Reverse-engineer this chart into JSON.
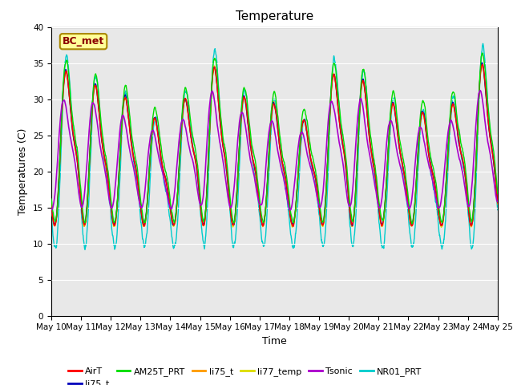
{
  "title": "Temperature",
  "xlabel": "Time",
  "ylabel": "Temperatures (C)",
  "annotation": "BC_met",
  "ylim": [
    0,
    40
  ],
  "xlim_days": [
    0,
    15
  ],
  "legend_labels": [
    "AirT",
    "li75_t",
    "AM25T_PRT",
    "li75_t",
    "li77_temp",
    "Tsonic",
    "NR01_PRT"
  ],
  "legend_colors": [
    "#ff0000",
    "#0000bb",
    "#00dd00",
    "#ff9900",
    "#dddd00",
    "#aa00cc",
    "#00cccc"
  ],
  "tick_days": [
    0,
    1,
    2,
    3,
    4,
    5,
    6,
    7,
    8,
    9,
    10,
    11,
    12,
    13,
    14,
    15
  ],
  "tick_labels": [
    "May 10",
    "May 11",
    "May 12",
    "May 13",
    "May 14",
    "May 15",
    "May 16",
    "May 17",
    "May 18",
    "May 19",
    "May 20",
    "May 21",
    "May 22",
    "May 23",
    "May 24",
    "May 25"
  ],
  "bg_color": "#e8e8e8",
  "fig_bg": "#ffffff",
  "title_fontsize": 11,
  "axis_fontsize": 9,
  "tick_fontsize": 7.5
}
